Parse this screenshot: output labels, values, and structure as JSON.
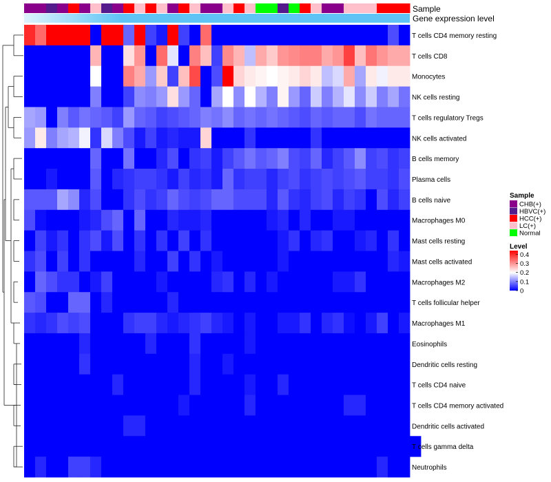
{
  "chart_data": {
    "type": "heatmap",
    "title": "",
    "annotation_rows": [
      "Sample",
      "Gene expression level"
    ],
    "sample_groups": [
      "CHB(+)",
      "CHB(+)",
      "HBVC(+)",
      "CHB(+)",
      "HCC(+)",
      "CHB(+)",
      "LC(+)",
      "HBVC(+)",
      "CHB(+)",
      "HCC(+)",
      "LC(+)",
      "HCC(+)",
      "LC(+)",
      "CHB(+)",
      "HCC(+)",
      "LC(+)",
      "CHB(+)",
      "CHB(+)",
      "LC(+)",
      "HCC(+)",
      "LC(+)",
      "Normal",
      "Normal",
      "HBVC(+)",
      "Normal",
      "HCC(+)",
      "LC(+)",
      "CHB(+)",
      "CHB(+)",
      "LC(+)",
      "LC(+)",
      "LC(+)",
      "HCC(+)",
      "HCC(+)",
      "HCC(+)"
    ],
    "rows": [
      "T cells CD4 memory resting",
      "T cells CD8",
      "Monocytes",
      "NK cells resting",
      "T cells regulatory  Tregs",
      "NK cells activated",
      "B cells memory",
      "Plasma cells",
      "B cells naive",
      "Macrophages M0",
      "Mast cells resting",
      "Mast cells activated",
      "Macrophages M2",
      "T cells follicular helper",
      "Macrophages M1",
      "Eosinophils",
      "Dendritic cells resting",
      "T cells CD4 naive",
      "T cells CD4 memory activated",
      "Dendritic cells activated",
      "T cells gamma delta",
      "Neutrophils"
    ],
    "values": [
      [
        0.4,
        0.34,
        0.44,
        0.44,
        0.44,
        0.44,
        0,
        0.44,
        0.44,
        0.08,
        0.44,
        0.05,
        0.02,
        0.44,
        0.05,
        0,
        0.34,
        0,
        0,
        0,
        0,
        0,
        0,
        0,
        0,
        0,
        0,
        0,
        0,
        0,
        0,
        0,
        0,
        0.06,
        0
      ],
      [
        0,
        0,
        0,
        0,
        0,
        0,
        0.27,
        0,
        0,
        0.23,
        0.3,
        0,
        0.34,
        0.18,
        0,
        0.32,
        0.26,
        0.05,
        0.31,
        0.27,
        0.15,
        0.28,
        0.25,
        0.3,
        0.31,
        0.32,
        0.32,
        0.28,
        0.3,
        0.38,
        0.26,
        0.33,
        0.3,
        0.28,
        0.28
      ],
      [
        0,
        0,
        0,
        0,
        0,
        0,
        0.2,
        0,
        0,
        0.32,
        0.28,
        0.12,
        0.25,
        0.05,
        0.26,
        0.37,
        0,
        0.06,
        0.44,
        0.24,
        0.22,
        0.21,
        0.2,
        0.21,
        0.22,
        0.24,
        0.22,
        0.15,
        0.17,
        0.28,
        0.13,
        0.22,
        0.19,
        0.22,
        0.22
      ],
      [
        0,
        0,
        0,
        0,
        0,
        0,
        0.1,
        0,
        0,
        0.05,
        0.11,
        0.1,
        0.12,
        0.23,
        0.12,
        0.08,
        0,
        0.13,
        0.2,
        0.11,
        0.2,
        0.14,
        0.1,
        0.21,
        0.12,
        0.08,
        0.16,
        0.1,
        0.14,
        0.18,
        0.11,
        0.16,
        0.1,
        0.13,
        0.09
      ],
      [
        0.13,
        0.12,
        0,
        0.1,
        0.07,
        0.09,
        0.08,
        0.07,
        0.05,
        0.12,
        0.08,
        0.07,
        0.05,
        0.06,
        0.07,
        0.08,
        0.1,
        0.09,
        0.11,
        0.08,
        0.09,
        0.08,
        0.09,
        0.08,
        0.07,
        0.06,
        0.08,
        0.07,
        0.08,
        0.08,
        0.06,
        0.09,
        0.08,
        0.08,
        0.08
      ],
      [
        0.12,
        0.22,
        0.1,
        0.13,
        0.14,
        0.19,
        0.04,
        0.17,
        0.1,
        0.06,
        0.02,
        0.05,
        0.02,
        0.03,
        0.02,
        0.02,
        0.24,
        0,
        0,
        0,
        0.04,
        0,
        0,
        0,
        0,
        0,
        0.04,
        0,
        0,
        0,
        0,
        0,
        0,
        0,
        0
      ],
      [
        0,
        0,
        0,
        0,
        0,
        0,
        0.08,
        0,
        0,
        0.09,
        0,
        0,
        0.03,
        0.06,
        0,
        0.04,
        0.05,
        0.02,
        0.05,
        0.07,
        0.09,
        0.07,
        0.08,
        0.1,
        0.06,
        0.05,
        0.08,
        0.03,
        0.05,
        0.07,
        0.11,
        0.05,
        0.06,
        0.04,
        0.05
      ],
      [
        0,
        0,
        0.02,
        0,
        0,
        0,
        0.07,
        0,
        0.03,
        0.04,
        0.05,
        0.05,
        0.04,
        0.02,
        0.05,
        0.03,
        0.04,
        0.02,
        0.08,
        0.04,
        0.05,
        0.05,
        0.03,
        0.05,
        0.06,
        0.04,
        0.05,
        0.06,
        0.05,
        0.06,
        0.07,
        0.05,
        0.05,
        0.04,
        0.06
      ],
      [
        0.07,
        0.07,
        0.07,
        0.13,
        0.11,
        0.03,
        0.06,
        0,
        0,
        0.04,
        0.06,
        0.04,
        0.05,
        0.08,
        0.06,
        0.05,
        0.06,
        0.08,
        0.08,
        0.06,
        0.06,
        0.06,
        0.03,
        0.07,
        0.04,
        0.03,
        0.05,
        0.06,
        0.03,
        0.05,
        0.04,
        0,
        0.06,
        0.03,
        0.05
      ],
      [
        0.06,
        0.01,
        0,
        0,
        0,
        0.02,
        0.03,
        0.06,
        0.08,
        0,
        0.08,
        0,
        0,
        0.03,
        0.02,
        0.02,
        0.03,
        0,
        0,
        0,
        0,
        0,
        0.02,
        0.03,
        0,
        0.03,
        0,
        0,
        0.02,
        0.02,
        0,
        0,
        0,
        0,
        0
      ],
      [
        0,
        0.05,
        0.02,
        0.04,
        0,
        0.04,
        0.06,
        0.02,
        0.06,
        0,
        0.04,
        0,
        0.04,
        0,
        0.05,
        0,
        0.04,
        0,
        0,
        0,
        0,
        0,
        0,
        0.02,
        0.04,
        0,
        0.03,
        0.04,
        0,
        0,
        0.02,
        0.03,
        0,
        0.04,
        0
      ],
      [
        0.04,
        0.06,
        0,
        0.05,
        0,
        0.04,
        0,
        0,
        0,
        0,
        0.03,
        0,
        0,
        0.05,
        0,
        0.04,
        0,
        0.02,
        0,
        0,
        0,
        0,
        0,
        0.02,
        0,
        0,
        0,
        0,
        0,
        0,
        0,
        0,
        0,
        0.03,
        0.02
      ],
      [
        0,
        0.08,
        0.06,
        0.04,
        0.04,
        0,
        0.02,
        0.05,
        0,
        0,
        0,
        0,
        0.02,
        0,
        0,
        0,
        0,
        0.03,
        0.04,
        0,
        0.03,
        0,
        0.02,
        0,
        0,
        0,
        0,
        0,
        0.02,
        0.02,
        0.04,
        0,
        0,
        0,
        0
      ],
      [
        0.07,
        0.06,
        0,
        0,
        0.08,
        0.08,
        0,
        0.03,
        0,
        0,
        0,
        0,
        0,
        0.03,
        0,
        0,
        0,
        0,
        0,
        0,
        0,
        0,
        0,
        0,
        0,
        0,
        0,
        0,
        0,
        0,
        0,
        0,
        0,
        0,
        0
      ],
      [
        0.04,
        0.03,
        0.04,
        0.06,
        0.05,
        0.06,
        0,
        0,
        0,
        0.04,
        0.05,
        0.05,
        0.03,
        0.02,
        0.03,
        0.04,
        0.05,
        0.03,
        0.02,
        0,
        0.02,
        0,
        0,
        0.02,
        0.02,
        0.04,
        0,
        0.03,
        0.04,
        0.01,
        0,
        0.02,
        0.05,
        0,
        0.02
      ],
      [
        0,
        0,
        0,
        0,
        0,
        0.03,
        0,
        0,
        0,
        0,
        0,
        0.03,
        0,
        0,
        0,
        0.04,
        0,
        0,
        0,
        0,
        0.02,
        0,
        0,
        0,
        0,
        0,
        0,
        0,
        0,
        0,
        0,
        0,
        0,
        0,
        0
      ],
      [
        0,
        0,
        0,
        0,
        0,
        0.04,
        0,
        0,
        0,
        0,
        0,
        0,
        0,
        0,
        0,
        0.03,
        0,
        0,
        0.02,
        0,
        0,
        0,
        0,
        0,
        0,
        0,
        0,
        0,
        0,
        0,
        0,
        0,
        0,
        0,
        0
      ],
      [
        0,
        0,
        0,
        0,
        0,
        0,
        0,
        0,
        0.03,
        0,
        0,
        0,
        0,
        0,
        0,
        0.03,
        0,
        0,
        0,
        0,
        0.02,
        0,
        0,
        0.03,
        0,
        0,
        0,
        0,
        0,
        0,
        0,
        0,
        0,
        0,
        0
      ],
      [
        0,
        0,
        0,
        0,
        0,
        0,
        0,
        0,
        0,
        0,
        0,
        0,
        0,
        0,
        0.02,
        0,
        0,
        0,
        0,
        0,
        0.03,
        0,
        0,
        0,
        0,
        0,
        0,
        0,
        0,
        0.03,
        0.03,
        0,
        0,
        0,
        0
      ],
      [
        0,
        0,
        0,
        0,
        0,
        0,
        0,
        0,
        0,
        0.03,
        0.03,
        0,
        0,
        0,
        0,
        0,
        0,
        0,
        0,
        0,
        0,
        0,
        0,
        0,
        0,
        0,
        0,
        0,
        0,
        0,
        0,
        0,
        0,
        0,
        0
      ],
      [
        0,
        0,
        0,
        0,
        0,
        0,
        0,
        0,
        0,
        0,
        0,
        0,
        0,
        0,
        0,
        0,
        0,
        0,
        0,
        0,
        0,
        0,
        0,
        0,
        0,
        0,
        0,
        0,
        0,
        0,
        0,
        0,
        0,
        0,
        0,
        0
      ],
      [
        0,
        0.03,
        0,
        0,
        0.05,
        0.05,
        0.03,
        0,
        0,
        0,
        0,
        0,
        0,
        0,
        0,
        0,
        0,
        0,
        0,
        0,
        0,
        0,
        0,
        0,
        0,
        0,
        0,
        0,
        0,
        0,
        0,
        0,
        0.03,
        0,
        0
      ]
    ],
    "color_scale": {
      "min": 0,
      "mid": 0.2,
      "max": 0.44,
      "low": "#0000ff",
      "middle": "#ffffff",
      "high": "#ff0000"
    },
    "legend": {
      "sample_title": "Sample",
      "sample_entries": [
        {
          "label": "CHB(+)",
          "color": "#8b008b"
        },
        {
          "label": "HBVC(+)",
          "color": "#551a8b"
        },
        {
          "label": "HCC(+)",
          "color": "#ff0000"
        },
        {
          "label": "LC(+)",
          "color": "#ffc0cb"
        },
        {
          "label": "Normal",
          "color": "#00ff00"
        }
      ],
      "level_title": "Level",
      "level_ticks": [
        "0.4",
        "0.3",
        "0.2",
        "0.1",
        "0"
      ],
      "level_tick_values": [
        0.4,
        0.3,
        0.2,
        0.1,
        0
      ]
    },
    "expression_bar_color": "#5fc4f5",
    "grid": false
  }
}
